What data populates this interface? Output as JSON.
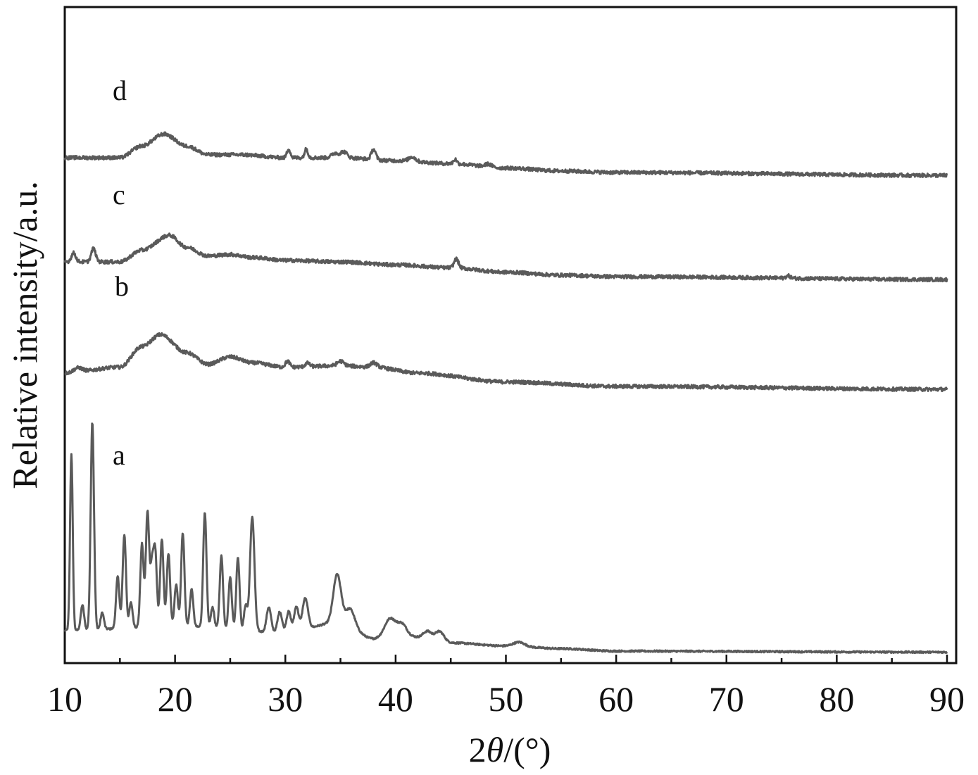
{
  "chart_data": {
    "type": "line",
    "xlabel_prefix": "2",
    "xlabel_theta": "θ",
    "xlabel_suffix": "/(°)",
    "ylabel": "Relative intensity/a.u.",
    "xlim": [
      10,
      90
    ],
    "xticks": [
      "10",
      "20",
      "30",
      "40",
      "50",
      "60",
      "70",
      "80",
      "90"
    ],
    "grid": false,
    "legend": "none",
    "line_color": "#5a5a5a",
    "series": [
      {
        "name": "a",
        "baseline": [
          [
            10,
            0.1
          ],
          [
            20,
            0.12
          ],
          [
            30,
            0.09
          ],
          [
            35,
            0.14
          ],
          [
            38,
            0.06
          ],
          [
            40,
            0.08
          ],
          [
            45,
            0.04
          ],
          [
            50,
            0.025
          ],
          [
            55,
            0.012
          ],
          [
            60,
            0.0
          ],
          [
            90,
            -0.005
          ]
        ],
        "peaks": [
          [
            10.6,
            0.85,
            0.12
          ],
          [
            11.6,
            0.12,
            0.15
          ],
          [
            12.5,
            1.0,
            0.15
          ],
          [
            13.4,
            0.08,
            0.15
          ],
          [
            14.8,
            0.25,
            0.15
          ],
          [
            15.4,
            0.45,
            0.15
          ],
          [
            16.0,
            0.12,
            0.15
          ],
          [
            17.0,
            0.4,
            0.15
          ],
          [
            17.5,
            0.55,
            0.15
          ],
          [
            17.9,
            0.28,
            0.15
          ],
          [
            18.2,
            0.35,
            0.15
          ],
          [
            18.8,
            0.42,
            0.15
          ],
          [
            19.4,
            0.35,
            0.15
          ],
          [
            20.1,
            0.2,
            0.15
          ],
          [
            20.7,
            0.45,
            0.15
          ],
          [
            21.5,
            0.18,
            0.15
          ],
          [
            22.7,
            0.55,
            0.15
          ],
          [
            23.4,
            0.1,
            0.15
          ],
          [
            24.2,
            0.35,
            0.15
          ],
          [
            25.0,
            0.25,
            0.15
          ],
          [
            25.7,
            0.35,
            0.15
          ],
          [
            26.4,
            0.12,
            0.15
          ],
          [
            27.0,
            0.55,
            0.2
          ],
          [
            28.5,
            0.12,
            0.2
          ],
          [
            29.5,
            0.1,
            0.2
          ],
          [
            30.3,
            0.1,
            0.2
          ],
          [
            31.0,
            0.12,
            0.2
          ],
          [
            31.8,
            0.15,
            0.25
          ],
          [
            34.7,
            0.23,
            0.35
          ],
          [
            35.9,
            0.08,
            0.4
          ],
          [
            39.5,
            0.08,
            0.5
          ],
          [
            40.6,
            0.05,
            0.4
          ],
          [
            42.9,
            0.04,
            0.4
          ],
          [
            44.0,
            0.05,
            0.4
          ],
          [
            51.2,
            0.02,
            0.5
          ]
        ]
      },
      {
        "name": "b",
        "baseline": [
          [
            10,
            0.0
          ],
          [
            15,
            0.02
          ],
          [
            17,
            0.09
          ],
          [
            18.7,
            0.13
          ],
          [
            21,
            0.07
          ],
          [
            23,
            0.03
          ],
          [
            25,
            0.055
          ],
          [
            27,
            0.035
          ],
          [
            30,
            0.02
          ],
          [
            35,
            0.025
          ],
          [
            38,
            0.02
          ],
          [
            42,
            0.0
          ],
          [
            50,
            -0.03
          ],
          [
            60,
            -0.045
          ],
          [
            90,
            -0.055
          ]
        ],
        "peaks": [
          [
            11.2,
            0.015,
            0.4
          ],
          [
            30.2,
            0.02,
            0.2
          ],
          [
            32.0,
            0.012,
            0.2
          ],
          [
            35.0,
            0.015,
            0.3
          ],
          [
            38.0,
            0.015,
            0.3
          ]
        ]
      },
      {
        "name": "c",
        "baseline": [
          [
            10,
            0.0
          ],
          [
            12,
            0.0
          ],
          [
            15,
            0.0
          ],
          [
            17,
            0.04
          ],
          [
            19.5,
            0.09
          ],
          [
            21,
            0.05
          ],
          [
            23,
            0.02
          ],
          [
            25,
            0.025
          ],
          [
            27,
            0.015
          ],
          [
            30,
            0.005
          ],
          [
            35,
            0.0
          ],
          [
            40,
            -0.01
          ],
          [
            45,
            -0.02
          ],
          [
            50,
            -0.035
          ],
          [
            55,
            -0.045
          ],
          [
            60,
            -0.05
          ],
          [
            90,
            -0.06
          ]
        ],
        "peaks": [
          [
            10.8,
            0.03,
            0.2
          ],
          [
            12.6,
            0.045,
            0.2
          ],
          [
            45.5,
            0.03,
            0.2
          ],
          [
            75.6,
            0.008,
            0.2
          ]
        ]
      },
      {
        "name": "d",
        "baseline": [
          [
            10,
            0.0
          ],
          [
            12,
            0.0
          ],
          [
            15,
            0.0
          ],
          [
            17,
            0.04
          ],
          [
            19,
            0.08
          ],
          [
            21,
            0.04
          ],
          [
            23,
            0.01
          ],
          [
            26,
            0.01
          ],
          [
            30,
            0.0
          ],
          [
            35,
            0.0
          ],
          [
            40,
            -0.01
          ],
          [
            45,
            -0.02
          ],
          [
            50,
            -0.035
          ],
          [
            55,
            -0.045
          ],
          [
            60,
            -0.05
          ],
          [
            90,
            -0.06
          ]
        ],
        "peaks": [
          [
            30.3,
            0.03,
            0.15
          ],
          [
            31.9,
            0.03,
            0.15
          ],
          [
            34.5,
            0.015,
            0.3
          ],
          [
            35.3,
            0.02,
            0.3
          ],
          [
            38.0,
            0.035,
            0.2
          ],
          [
            41.5,
            0.015,
            0.3
          ],
          [
            45.4,
            0.015,
            0.15
          ],
          [
            48.4,
            0.01,
            0.3
          ]
        ]
      }
    ]
  }
}
